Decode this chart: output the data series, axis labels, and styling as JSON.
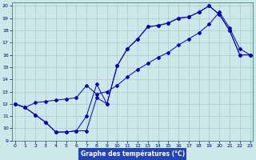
{
  "xlabel": "Graphe des températures (°C)",
  "xlim": [
    0,
    23
  ],
  "ylim": [
    9,
    20
  ],
  "yticks": [
    9,
    10,
    11,
    12,
    13,
    14,
    15,
    16,
    17,
    18,
    19,
    20
  ],
  "xticks": [
    0,
    1,
    2,
    3,
    4,
    5,
    6,
    7,
    8,
    9,
    10,
    11,
    12,
    13,
    14,
    15,
    16,
    17,
    18,
    19,
    20,
    21,
    22,
    23
  ],
  "bg_color": "#cce8e8",
  "grid_color": "#aacccc",
  "line_color": "#0000cc",
  "xlabel_bg": "#2244bb",
  "line1_x": [
    0,
    1,
    2,
    3,
    4,
    5,
    6,
    7,
    8,
    9,
    10,
    11,
    12,
    13,
    14,
    15,
    16,
    17,
    18,
    19,
    20,
    21,
    22,
    23
  ],
  "line1_y": [
    12.0,
    11.7,
    11.1,
    10.5,
    9.7,
    9.7,
    9.8,
    9.8,
    12.5,
    12.0,
    15.1,
    16.5,
    17.3,
    18.3,
    18.4,
    18.6,
    19.0,
    19.1,
    19.5,
    20.0,
    19.3,
    18.0,
    16.0,
    16.0
  ],
  "line2_x": [
    0,
    1,
    2,
    3,
    4,
    5,
    6,
    7,
    8,
    9,
    10,
    11,
    12,
    13,
    14,
    15,
    16,
    17,
    18,
    19,
    20,
    21,
    22,
    23
  ],
  "line2_y": [
    12.0,
    11.7,
    11.1,
    10.5,
    9.7,
    9.7,
    9.8,
    11.0,
    13.6,
    12.0,
    15.1,
    16.5,
    17.3,
    18.3,
    18.4,
    18.6,
    19.0,
    19.1,
    19.5,
    20.0,
    19.3,
    18.0,
    16.0,
    16.0
  ],
  "line3_x": [
    0,
    1,
    2,
    3,
    4,
    5,
    6,
    7,
    8,
    9,
    10,
    11,
    12,
    13,
    14,
    15,
    16,
    17,
    18,
    19,
    20,
    21,
    22,
    23
  ],
  "line3_y": [
    12.0,
    11.7,
    12.1,
    12.2,
    12.3,
    12.4,
    12.5,
    13.5,
    12.8,
    13.0,
    13.5,
    14.2,
    14.8,
    15.3,
    15.8,
    16.2,
    16.8,
    17.3,
    17.8,
    18.5,
    19.5,
    18.2,
    16.5,
    16.0
  ]
}
